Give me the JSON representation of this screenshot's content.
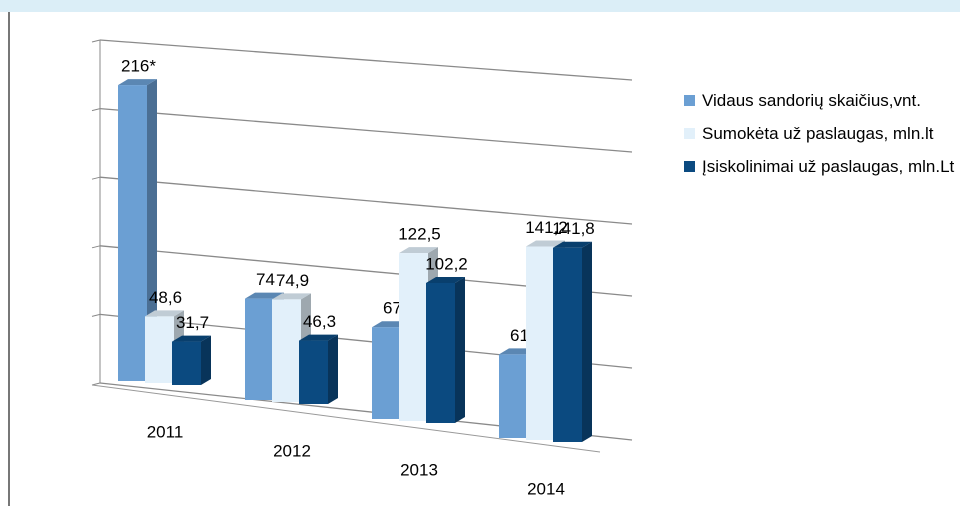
{
  "chart_data": {
    "type": "bar3d",
    "categories": [
      "2011",
      "2012",
      "2013",
      "2014"
    ],
    "series": [
      {
        "name": "Vidaus sandorių skaičius,vnt.",
        "color": "#6b9fd3",
        "values": [
          216,
          74,
          67,
          61
        ],
        "value_labels": [
          "216*",
          "74",
          "67",
          "61"
        ]
      },
      {
        "name": "Sumokėta už paslaugas, mln.lt",
        "color": "#e2f0fa",
        "values": [
          48.6,
          74.9,
          122.5,
          141.2
        ],
        "value_labels": [
          "48,6",
          "74,9",
          "122,5",
          "141,2"
        ]
      },
      {
        "name": "Įsiskolinimai už paslaugas, mln.Lt",
        "color": "#0b4a80",
        "values": [
          31.7,
          46.3,
          102.2,
          141.8
        ],
        "value_labels": [
          "31,7",
          "46,3",
          "102,2",
          "141,8"
        ]
      }
    ],
    "ylim": [
      0,
      250
    ],
    "yticks": [
      0,
      50,
      100,
      150,
      200,
      250
    ],
    "grid": true
  }
}
